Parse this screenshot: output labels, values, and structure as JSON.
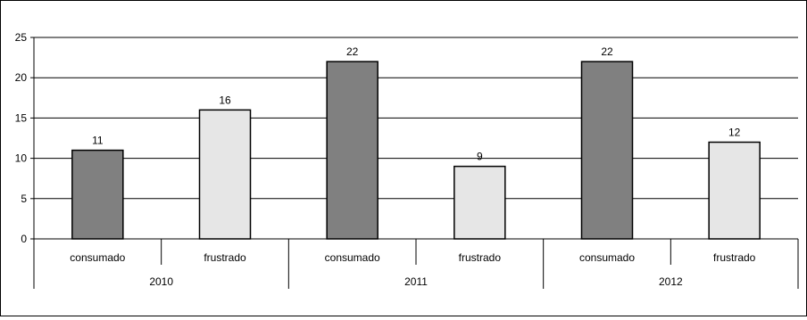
{
  "chart_data": {
    "type": "bar",
    "title": "",
    "xlabel": "",
    "ylabel": "",
    "ylim": [
      0,
      25
    ],
    "yticks": [
      0,
      5,
      10,
      15,
      20,
      25
    ],
    "grid": true,
    "legend": "none",
    "groups": [
      {
        "label": "2010",
        "categories": [
          "consumado",
          "frustrado"
        ],
        "values": [
          11,
          16
        ]
      },
      {
        "label": "2011",
        "categories": [
          "consumado",
          "frustrado"
        ],
        "values": [
          22,
          9
        ]
      },
      {
        "label": "2012",
        "categories": [
          "consumado",
          "frustrado"
        ],
        "values": [
          22,
          12
        ]
      }
    ],
    "colors": {
      "consumado": "#808080",
      "frustrado": "#e6e6e6"
    }
  }
}
